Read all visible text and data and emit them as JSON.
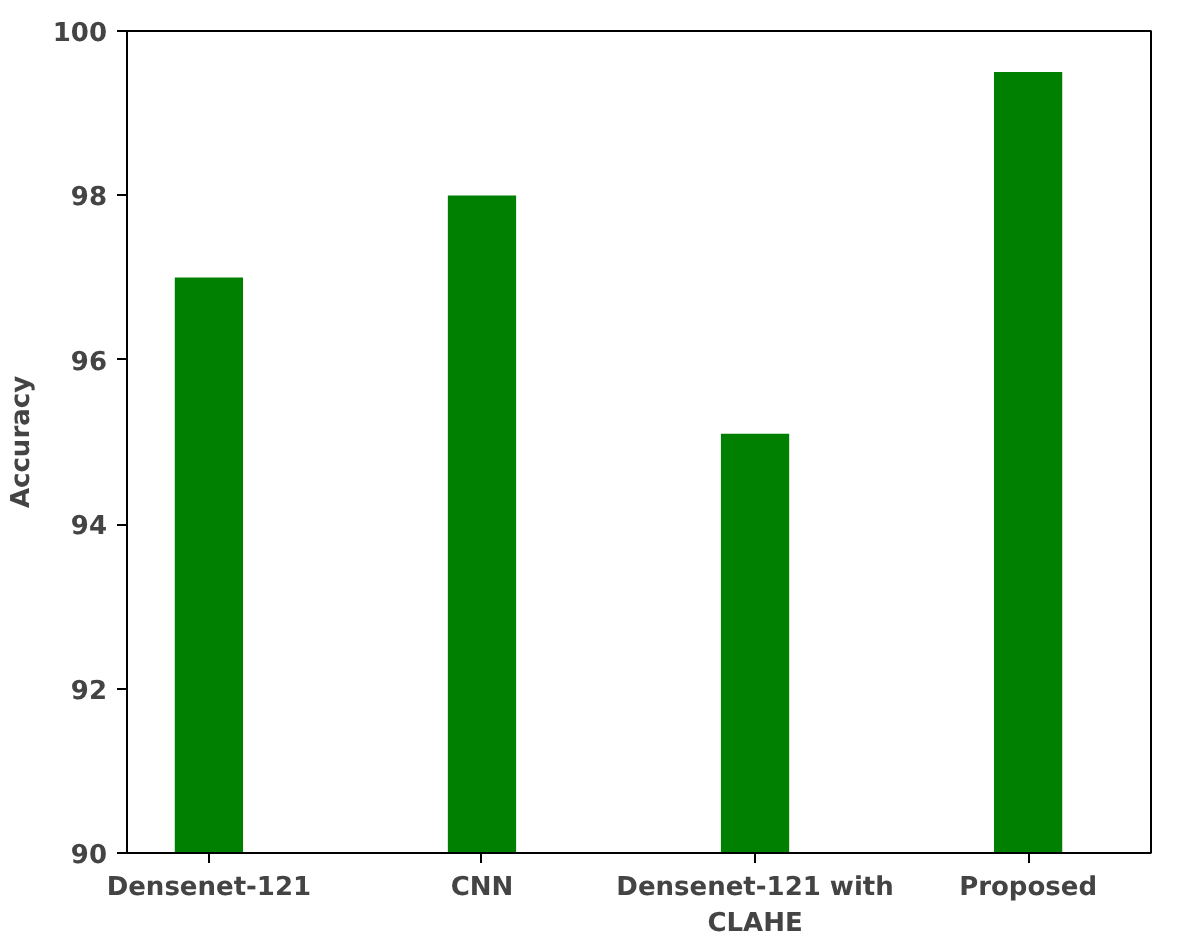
{
  "chart_data": {
    "type": "bar",
    "ylabel": "Accuracy",
    "categories": [
      "Densenet-121",
      "CNN",
      "Densenet-121 with CLAHE",
      "Proposed"
    ],
    "values": [
      97.0,
      98.0,
      95.1,
      99.5
    ],
    "color": "#008000",
    "ylim": [
      90,
      100
    ],
    "yticks": [
      90,
      92,
      94,
      96,
      98,
      100
    ],
    "grid": false
  }
}
